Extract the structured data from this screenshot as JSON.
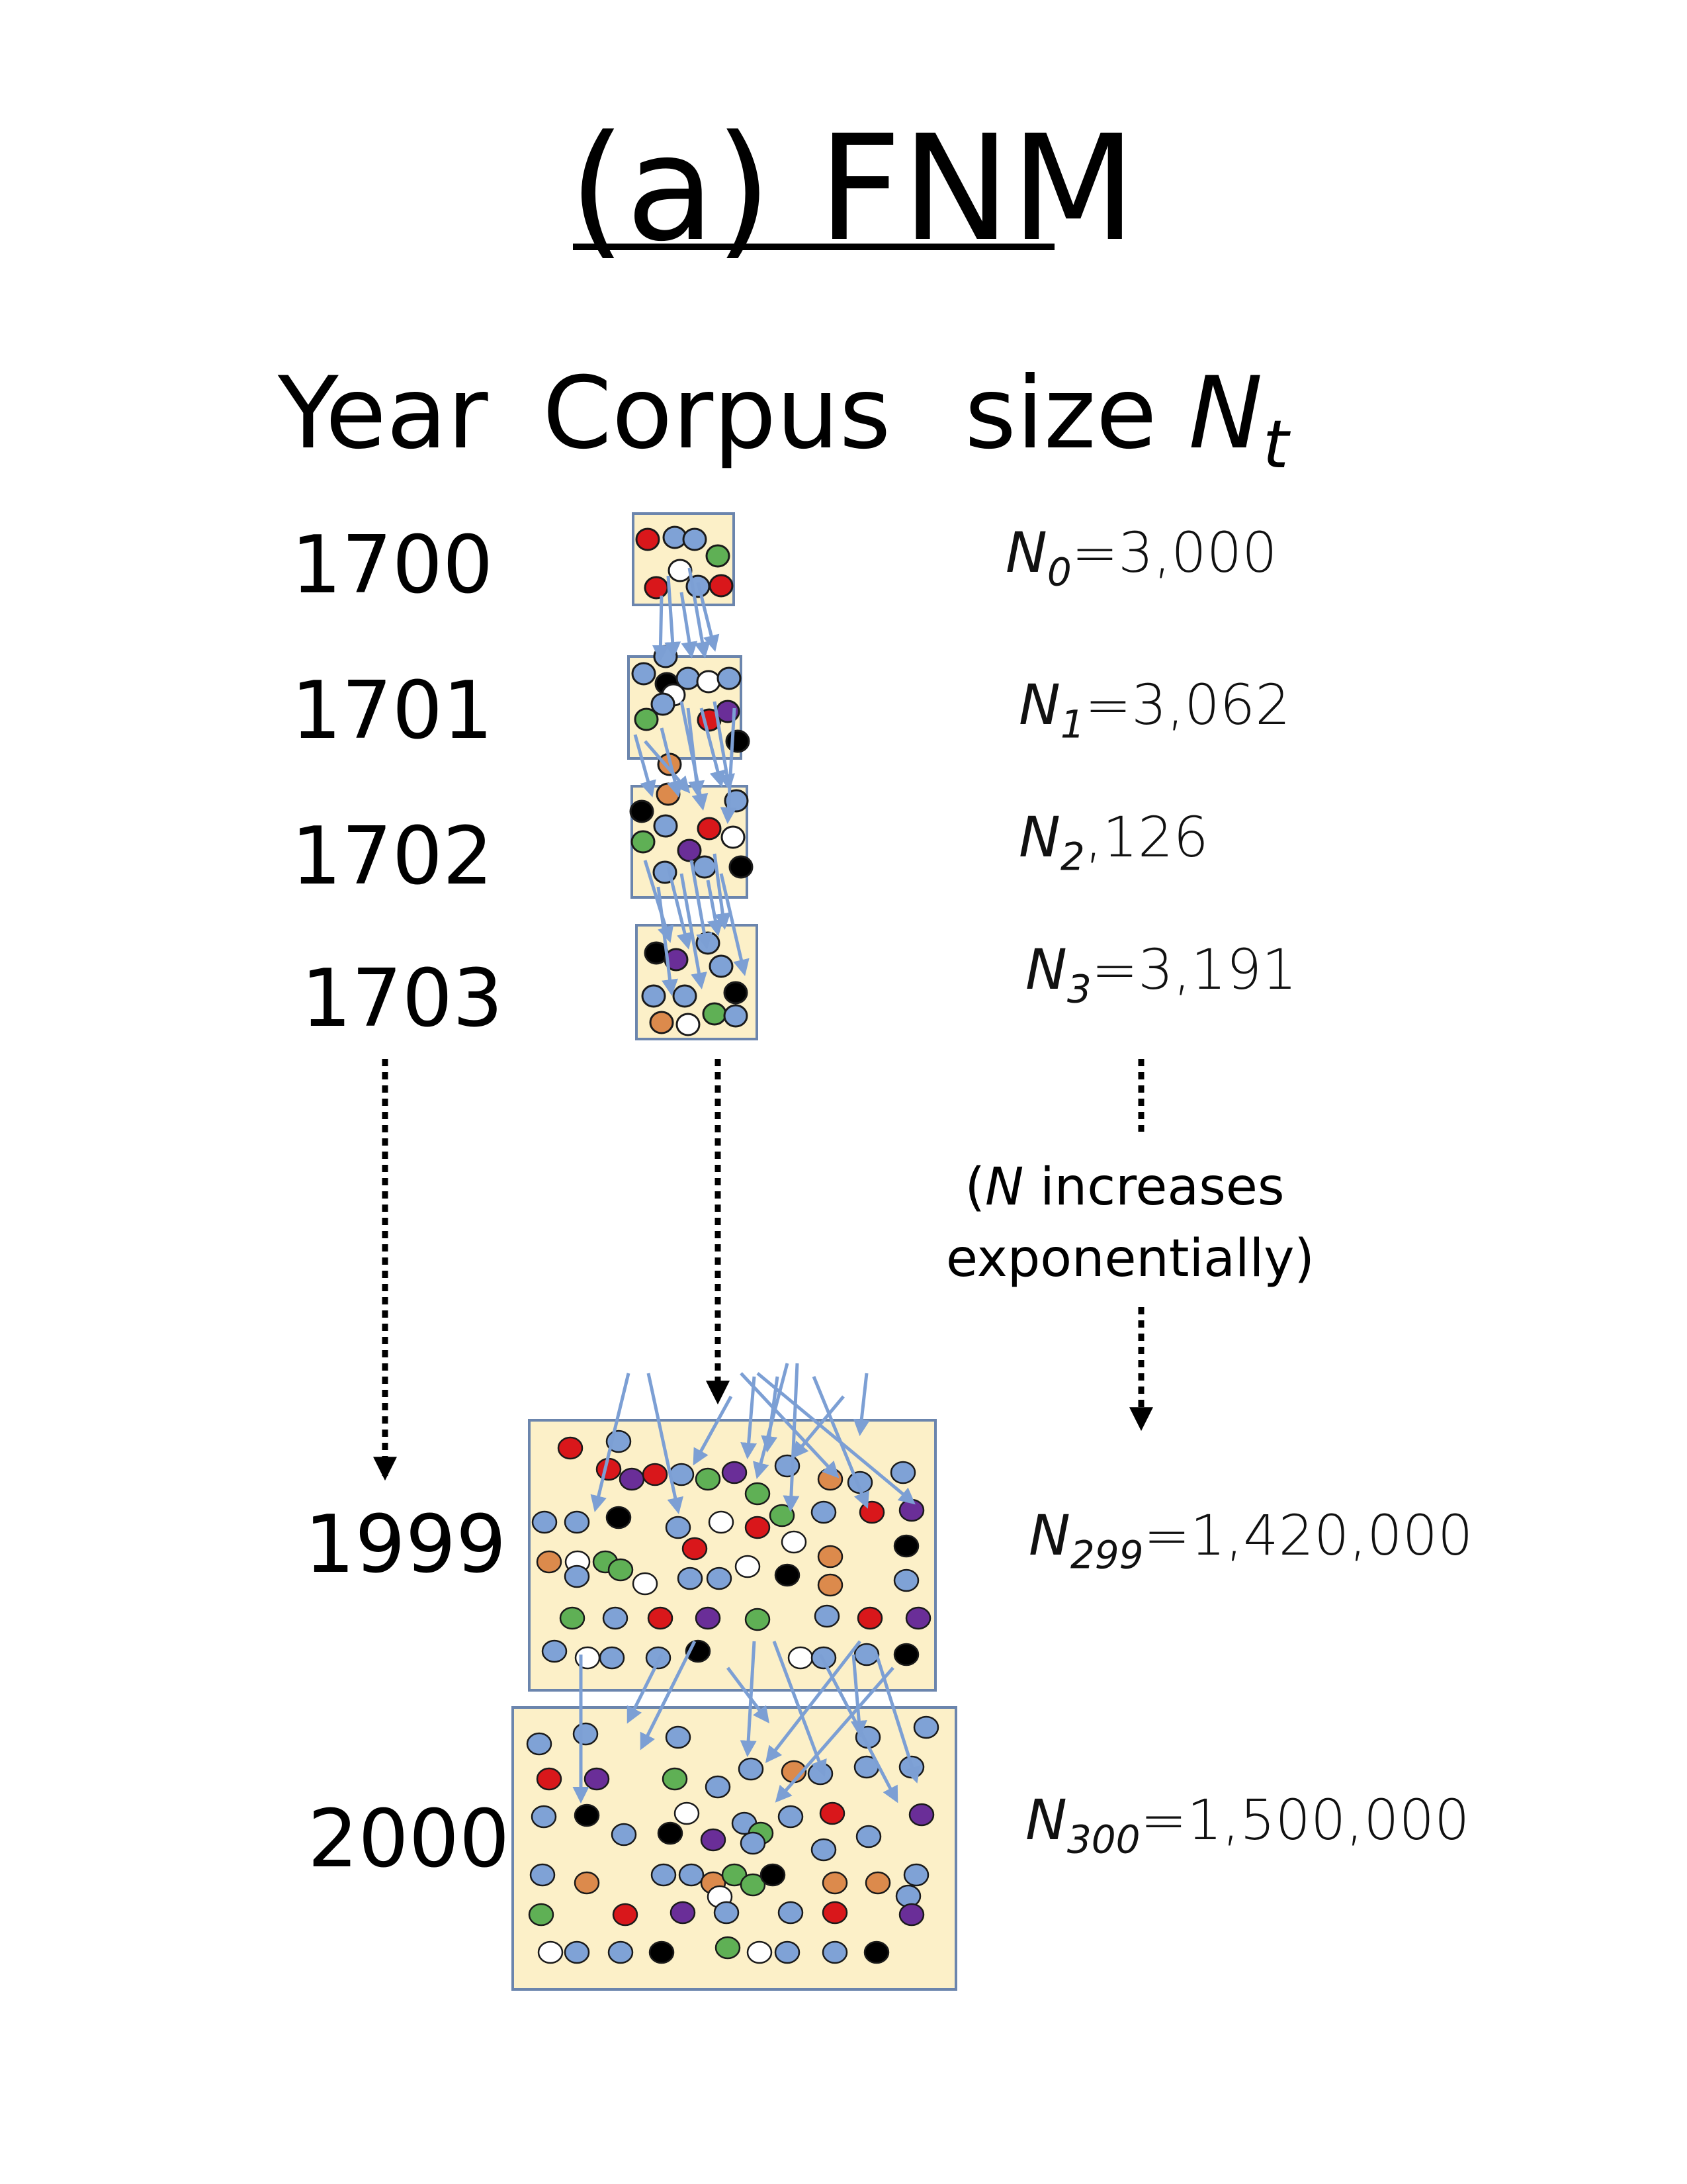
{
  "title": "(a) FNM",
  "headers": {
    "year": "Year",
    "corpus": "Corpus",
    "size_prefix": "size ",
    "size_symbol": "N",
    "size_subscript": "t"
  },
  "rows": [
    {
      "year": "1700",
      "n_symbol": "N",
      "n_sub": "0",
      "n_rest": "=3,000"
    },
    {
      "year": "1701",
      "n_symbol": "N",
      "n_sub": "1",
      "n_rest": "=3,062"
    },
    {
      "year": "1702",
      "n_symbol": "N",
      "n_sub": "2",
      "n_rest": ",126"
    },
    {
      "year": "1703",
      "n_symbol": "N",
      "n_sub": "3",
      "n_rest": "=3,191"
    },
    {
      "year": "1999",
      "n_symbol": "N",
      "n_sub": "299",
      "n_rest": "=1,420,000"
    },
    {
      "year": "2000",
      "n_symbol": "N",
      "n_sub": "300",
      "n_rest": "=1,500,000"
    }
  ],
  "note": {
    "open": "(",
    "symbol": "N",
    "line1_rest": " increases",
    "line2": "exponentially)"
  },
  "colors": {
    "box_fill": "#fcf0c8",
    "box_stroke": "#6b85ad",
    "arrow": "#7c9fd4",
    "dot_stroke": "#1a1a1a",
    "red": "#d9171b",
    "blue": "#7fa2d6",
    "purple": "#6a2e98",
    "green": "#5fb055",
    "orange": "#dc8a4c",
    "black": "#000000",
    "white": "#ffffff"
  }
}
